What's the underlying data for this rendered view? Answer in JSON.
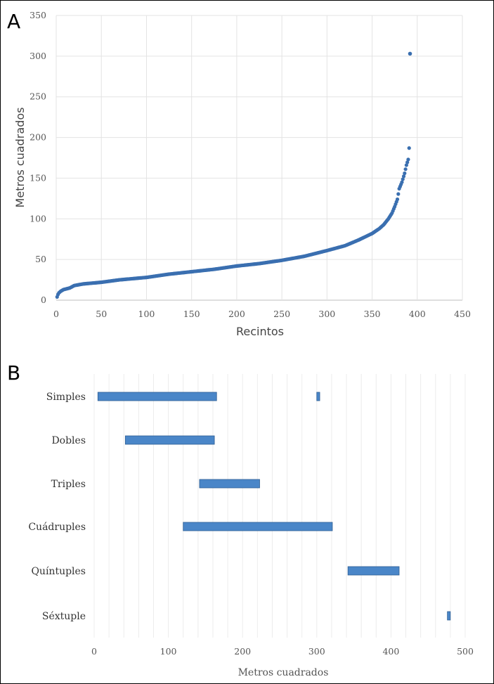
{
  "chart_data": [
    {
      "panel": "A",
      "type": "scatter",
      "xlabel": "Recintos",
      "ylabel": "Metros cuadrados",
      "xlim": [
        0,
        450
      ],
      "ylim": [
        0,
        350
      ],
      "xticks": [
        "0",
        "50",
        "100",
        "150",
        "200",
        "250",
        "300",
        "350",
        "400",
        "450"
      ],
      "yticks": [
        "0",
        "50",
        "100",
        "150",
        "200",
        "250",
        "300",
        "350"
      ],
      "grid": true,
      "color": "#3a6fb0",
      "n_points": 392,
      "sorted_curve_knots": [
        [
          1,
          4
        ],
        [
          2,
          7
        ],
        [
          3,
          9
        ],
        [
          5,
          11
        ],
        [
          8,
          13
        ],
        [
          15,
          15
        ],
        [
          20,
          18
        ],
        [
          30,
          20
        ],
        [
          50,
          22
        ],
        [
          70,
          25
        ],
        [
          100,
          28
        ],
        [
          125,
          32
        ],
        [
          150,
          35
        ],
        [
          175,
          38
        ],
        [
          200,
          42
        ],
        [
          225,
          45
        ],
        [
          250,
          49
        ],
        [
          275,
          54
        ],
        [
          300,
          61
        ],
        [
          320,
          67
        ],
        [
          335,
          74
        ],
        [
          350,
          82
        ],
        [
          358,
          88
        ],
        [
          363,
          93
        ],
        [
          368,
          100
        ],
        [
          372,
          107
        ],
        [
          375,
          115
        ],
        [
          378,
          124
        ],
        [
          380,
          137
        ],
        [
          383,
          145
        ],
        [
          386,
          156
        ],
        [
          388,
          166
        ],
        [
          390,
          173
        ],
        [
          391,
          187
        ]
      ],
      "outliers": [
        [
          392,
          303
        ]
      ]
    },
    {
      "panel": "B",
      "type": "bar",
      "orientation": "horizontal-range",
      "xlabel": "Metros cuadrados",
      "xlim": [
        0,
        500
      ],
      "xticks": [
        "0",
        "100",
        "200",
        "300",
        "400",
        "500"
      ],
      "categories": [
        "Simples",
        "Dobles",
        "Triples",
        "Cuádruples",
        "Quíntuples",
        "Séxtuple"
      ],
      "ranges": [
        [
          [
            5,
            165
          ],
          [
            300,
            304
          ]
        ],
        [
          [
            42,
            162
          ]
        ],
        [
          [
            142,
            223
          ]
        ],
        [
          [
            120,
            321
          ]
        ],
        [
          [
            342,
            411
          ]
        ],
        [
          [
            476,
            480
          ]
        ]
      ],
      "color": "#4a86c8"
    }
  ]
}
